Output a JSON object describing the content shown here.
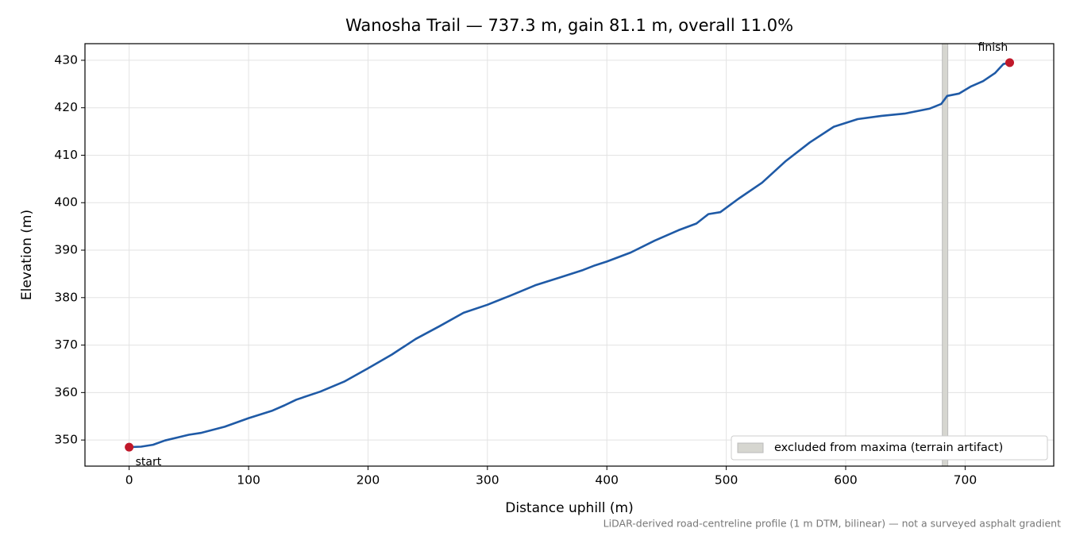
{
  "chart_data": {
    "type": "line",
    "title": "Wanosha Trail — 737.3 m, gain 81.1 m, overall 11.0%",
    "xlabel": "Distance uphill (m)",
    "ylabel": "Elevation (m)",
    "footnote": "LiDAR-derived road-centreline profile (1 m DTM, bilinear) — not a surveyed asphalt gradient",
    "x": [
      0,
      10,
      20,
      30,
      40,
      50,
      60,
      80,
      100,
      120,
      130,
      140,
      160,
      180,
      200,
      220,
      240,
      260,
      280,
      300,
      320,
      340,
      360,
      380,
      390,
      400,
      420,
      440,
      460,
      475,
      485,
      495,
      510,
      530,
      550,
      570,
      590,
      610,
      630,
      650,
      670,
      680,
      685,
      695,
      705,
      715,
      725,
      732,
      737.3
    ],
    "values": [
      348.5,
      348.6,
      349.0,
      349.9,
      350.5,
      351.1,
      351.5,
      352.8,
      354.6,
      356.2,
      357.3,
      358.5,
      360.2,
      362.3,
      365.1,
      368.0,
      371.3,
      374.0,
      376.8,
      378.5,
      380.5,
      382.6,
      384.2,
      385.8,
      386.8,
      387.6,
      389.5,
      392.0,
      394.2,
      395.6,
      397.6,
      398.0,
      400.8,
      404.2,
      408.8,
      412.7,
      416.0,
      417.6,
      418.3,
      418.8,
      419.8,
      420.8,
      422.5,
      423.0,
      424.5,
      425.6,
      427.3,
      429.2,
      429.5
    ],
    "color": "#1f5aa6",
    "points": [
      {
        "label": "start",
        "x": 0,
        "y": 348.5
      },
      {
        "label": "finish",
        "x": 737.3,
        "y": 429.5
      }
    ],
    "point_color": "#c0182a",
    "band": {
      "label": "excluded from maxima (terrain artifact)",
      "x": [
        680.9,
        685.5
      ],
      "color": "#d6d6d0"
    },
    "xlim": [
      -37,
      774.2
    ],
    "ylim": [
      344.5,
      433.5
    ],
    "xticks": [
      0,
      100,
      200,
      300,
      400,
      500,
      600,
      700
    ],
    "yticks": [
      350,
      360,
      370,
      380,
      390,
      400,
      410,
      420,
      430
    ],
    "grid": true,
    "legend": "lower right"
  }
}
